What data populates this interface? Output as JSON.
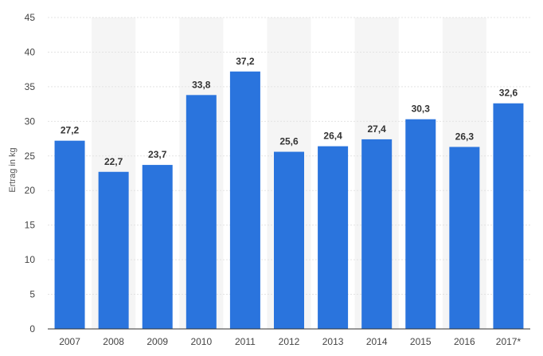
{
  "chart_data": {
    "type": "bar",
    "ylabel": "Ertrag in kg",
    "xlabel": "",
    "title": "",
    "categories": [
      "2007",
      "2008",
      "2009",
      "2010",
      "2011",
      "2012",
      "2013",
      "2014",
      "2015",
      "2016",
      "2017*"
    ],
    "values": [
      27.2,
      22.7,
      23.7,
      33.8,
      37.2,
      25.6,
      26.4,
      27.4,
      30.3,
      26.3,
      32.6
    ],
    "value_labels": [
      "27,2",
      "22,7",
      "23,7",
      "33,8",
      "37,2",
      "25,6",
      "26,4",
      "27,4",
      "30,3",
      "26,3",
      "32,6"
    ],
    "ylim": [
      0,
      45
    ],
    "yticks": [
      "0",
      "5",
      "10",
      "15",
      "20",
      "25",
      "30",
      "35",
      "40",
      "45"
    ],
    "grid": true,
    "legend": "none",
    "colors": {
      "bar": "#2a74dd",
      "band": "#f5f5f5",
      "axis": "#333333"
    }
  }
}
